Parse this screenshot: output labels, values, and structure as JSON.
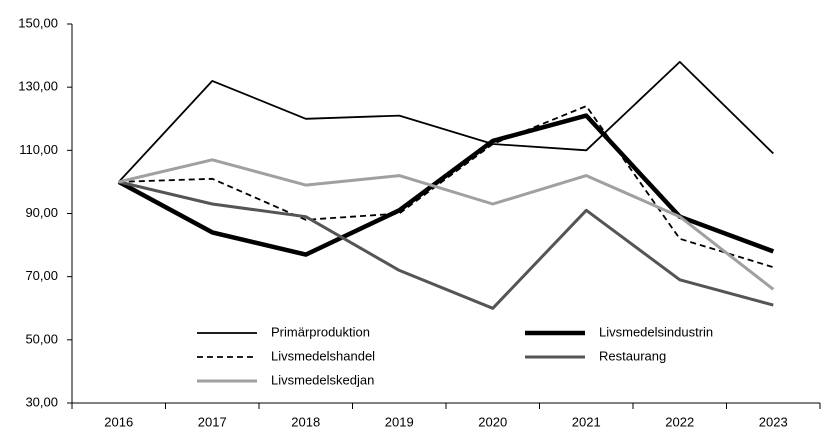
{
  "chart_data": {
    "type": "line",
    "categories": [
      "2016",
      "2017",
      "2018",
      "2019",
      "2020",
      "2021",
      "2022",
      "2023"
    ],
    "series": [
      {
        "name": "Primärproduktion",
        "color": "#000000",
        "values": [
          100,
          132,
          120,
          121,
          112,
          110,
          138,
          109
        ]
      },
      {
        "name": "Livsmedelsindustrin",
        "color": "#000000",
        "values": [
          100,
          84,
          77,
          91,
          113,
          121,
          89,
          78
        ]
      },
      {
        "name": "Livsmedelshandel",
        "color": "#000000",
        "dash": true,
        "values": [
          100,
          101,
          88,
          90,
          112,
          124,
          82,
          73
        ]
      },
      {
        "name": "Restaurang",
        "color": "#555555",
        "values": [
          100,
          93,
          89,
          72,
          60,
          91,
          69,
          61
        ]
      },
      {
        "name": "Livsmedelskedjan",
        "color": "#a0a0a0",
        "values": [
          100,
          107,
          99,
          102,
          93,
          102,
          89,
          66
        ]
      }
    ],
    "ylim": [
      30,
      150
    ],
    "yticks": [
      {
        "value": 30,
        "label": "30,00"
      },
      {
        "value": 50,
        "label": "50,00"
      },
      {
        "value": 70,
        "label": "70,00"
      },
      {
        "value": 90,
        "label": "90,00"
      },
      {
        "value": 110,
        "label": "110,00"
      },
      {
        "value": 130,
        "label": "130,00"
      },
      {
        "value": 150,
        "label": "150,00"
      }
    ],
    "grid": false
  }
}
